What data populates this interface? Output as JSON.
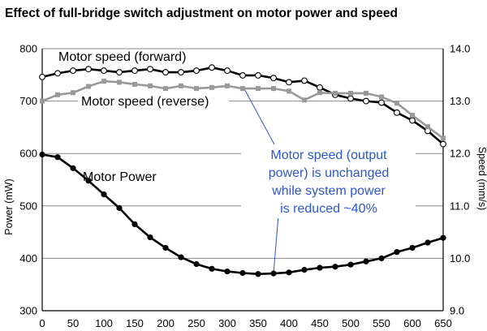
{
  "chart_data": {
    "type": "line",
    "title": "Effect of full-bridge switch adjustment on motor power and speed",
    "x": [
      0,
      25,
      50,
      75,
      100,
      125,
      150,
      175,
      200,
      225,
      250,
      275,
      300,
      325,
      350,
      375,
      400,
      425,
      450,
      475,
      500,
      525,
      550,
      575,
      600,
      625,
      650
    ],
    "xticks": [
      0,
      50,
      100,
      150,
      200,
      250,
      300,
      350,
      400,
      450,
      500,
      550,
      600,
      650
    ],
    "xlim": [
      0,
      650
    ],
    "ylabel": "Power (mW)",
    "ylim": [
      300,
      800
    ],
    "yticks": [
      300,
      400,
      500,
      600,
      700,
      800
    ],
    "y2label": "Speed (mm/s)",
    "y2lim": [
      9.0,
      14.0
    ],
    "y2ticks": [
      "9.0",
      "10.0",
      "11.0",
      "12.0",
      "13.0",
      "14.0"
    ],
    "grid": "horizontal",
    "series": [
      {
        "name": "Motor speed (forward)",
        "axis": "right",
        "color": "#000000",
        "marker": "open-circle",
        "values": [
          13.46,
          13.53,
          13.58,
          13.61,
          13.58,
          13.55,
          13.58,
          13.61,
          13.55,
          13.55,
          13.58,
          13.64,
          13.58,
          13.49,
          13.49,
          13.44,
          13.36,
          13.39,
          13.26,
          13.12,
          13.05,
          13.0,
          12.97,
          12.78,
          12.63,
          12.43,
          12.18
        ]
      },
      {
        "name": "Motor speed (reverse)",
        "axis": "right",
        "color": "#999999",
        "marker": "square",
        "values": [
          13.0,
          13.12,
          13.16,
          13.28,
          13.38,
          13.36,
          13.32,
          13.29,
          13.24,
          13.29,
          13.24,
          13.26,
          13.29,
          13.24,
          13.24,
          13.24,
          13.19,
          13.02,
          13.16,
          13.15,
          13.15,
          13.15,
          13.08,
          12.96,
          12.73,
          12.51,
          12.29
        ]
      },
      {
        "name": "Motor Power",
        "axis": "left",
        "color": "#000000",
        "marker": "filled-circle",
        "values": [
          598,
          593,
          572,
          548,
          522,
          496,
          465,
          440,
          420,
          402,
          389,
          380,
          375,
          372,
          370,
          371,
          373,
          378,
          382,
          384,
          388,
          394,
          400,
          412,
          420,
          430,
          439
        ]
      }
    ],
    "annotation": {
      "lines": [
        "Motor speed (output",
        "power) is unchanged",
        "while system power",
        "is reduced ~40%"
      ],
      "color": "#2c55d8",
      "pointer_targets": [
        {
          "x": 325,
          "axis": "right",
          "value": 13.29
        },
        {
          "x": 375,
          "axis": "left",
          "value": 371
        }
      ]
    }
  }
}
